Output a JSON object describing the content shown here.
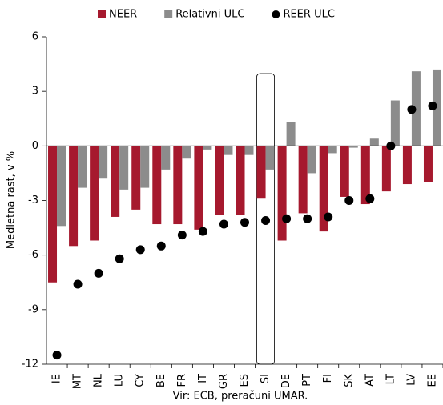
{
  "chart_data": {
    "type": "bar",
    "y_label": "Medletna rast, v %",
    "source": "Vir: ECB, preračuni UMAR.",
    "categories": [
      "IE",
      "MT",
      "NL",
      "LU",
      "CY",
      "BE",
      "FR",
      "IT",
      "GR",
      "ES",
      "SI",
      "DE",
      "PT",
      "FI",
      "SK",
      "AT",
      "LT",
      "LV",
      "EE"
    ],
    "series": [
      {
        "name": "NEER",
        "color": "#a6192e",
        "kind": "bar",
        "values": [
          -7.5,
          -5.5,
          -5.2,
          -3.9,
          -3.5,
          -4.3,
          -4.3,
          -4.6,
          -3.8,
          -3.8,
          -2.9,
          -5.2,
          -3.7,
          -4.7,
          -2.8,
          -3.2,
          -2.5,
          -2.1,
          -2.0
        ]
      },
      {
        "name": "Relativni ULC",
        "color": "#8c8c8c",
        "kind": "bar",
        "values": [
          -4.4,
          -2.3,
          -1.8,
          -2.4,
          -2.3,
          -1.3,
          -0.7,
          -0.2,
          -0.5,
          -0.5,
          -1.3,
          1.3,
          -1.5,
          -0.4,
          -0.1,
          0.4,
          2.5,
          4.1,
          4.2
        ]
      },
      {
        "name": "REER ULC",
        "color": "#000000",
        "kind": "dot",
        "values": [
          -11.5,
          -7.6,
          -7.0,
          -6.2,
          -5.7,
          -5.5,
          -4.9,
          -4.7,
          -4.3,
          -4.2,
          -4.1,
          -4.0,
          -4.0,
          -3.9,
          -3.0,
          -2.9,
          0.0,
          2.0,
          2.2
        ]
      }
    ],
    "highlight": "SI",
    "ylim": [
      -12,
      6
    ],
    "yticks": [
      -12,
      -9,
      -6,
      -3,
      0,
      3,
      6
    ],
    "grid": false
  }
}
